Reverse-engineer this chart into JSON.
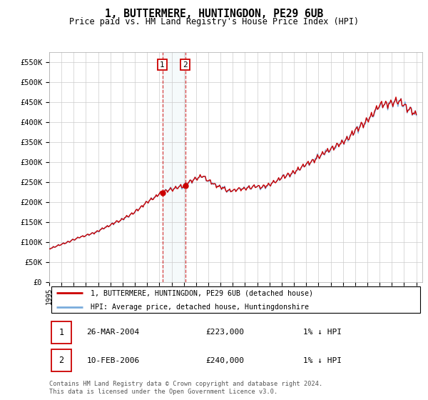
{
  "title": "1, BUTTERMERE, HUNTINGDON, PE29 6UB",
  "subtitle": "Price paid vs. HM Land Registry's House Price Index (HPI)",
  "ylim": [
    0,
    575000
  ],
  "yticks": [
    0,
    50000,
    100000,
    150000,
    200000,
    250000,
    300000,
    350000,
    400000,
    450000,
    500000,
    550000
  ],
  "ytick_labels": [
    "£0",
    "£50K",
    "£100K",
    "£150K",
    "£200K",
    "£250K",
    "£300K",
    "£350K",
    "£400K",
    "£450K",
    "£500K",
    "£550K"
  ],
  "line_red_color": "#cc0000",
  "line_blue_color": "#7aacdc",
  "grid_color": "#cccccc",
  "t1_year": 2004.24,
  "t2_year": 2006.11,
  "t1_price": 223000,
  "t2_price": 240000,
  "legend_line1": "1, BUTTERMERE, HUNTINGDON, PE29 6UB (detached house)",
  "legend_line2": "HPI: Average price, detached house, Huntingdonshire",
  "table_row1": [
    "1",
    "26-MAR-2004",
    "£223,000",
    "1% ↓ HPI"
  ],
  "table_row2": [
    "2",
    "10-FEB-2006",
    "£240,000",
    "1% ↓ HPI"
  ],
  "footer": "Contains HM Land Registry data © Crown copyright and database right 2024.\nThis data is licensed under the Open Government Licence v3.0."
}
